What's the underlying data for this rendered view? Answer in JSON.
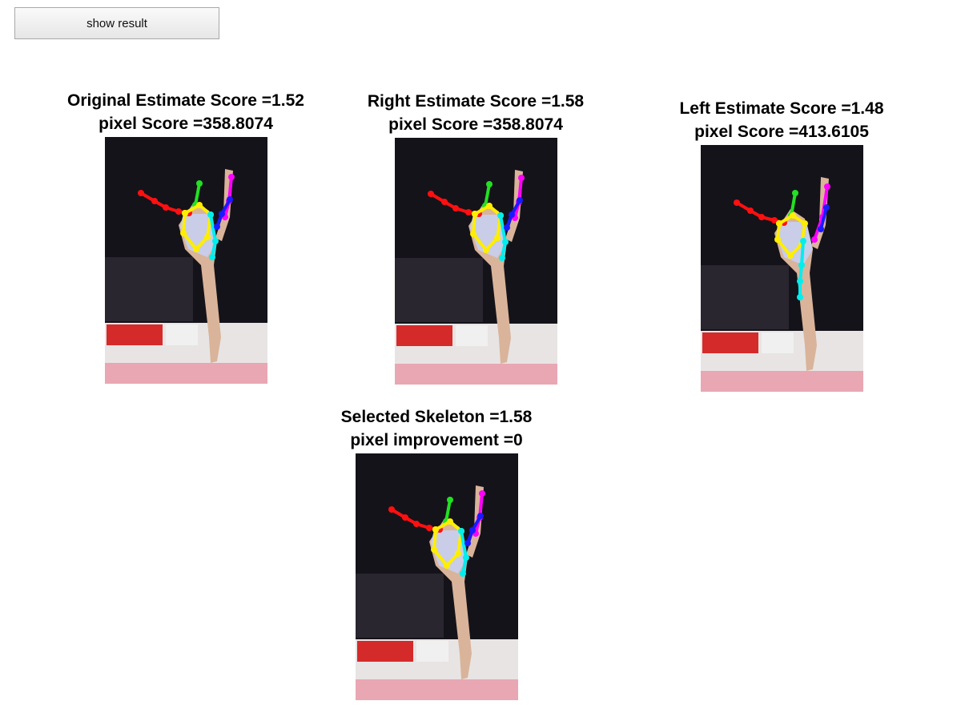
{
  "button": {
    "label": "show result"
  },
  "panels": [
    {
      "title": "Original Estimate Score =1.52",
      "subtitle": "pixel Score =358.8074"
    },
    {
      "title": "Right Estimate Score =1.58",
      "subtitle": "pixel Score =358.8074"
    },
    {
      "title": "Left Estimate Score =1.48",
      "subtitle": "pixel Score =413.6105"
    },
    {
      "title": "Selected Skeleton =1.58",
      "subtitle": "pixel improvement =0"
    }
  ]
}
